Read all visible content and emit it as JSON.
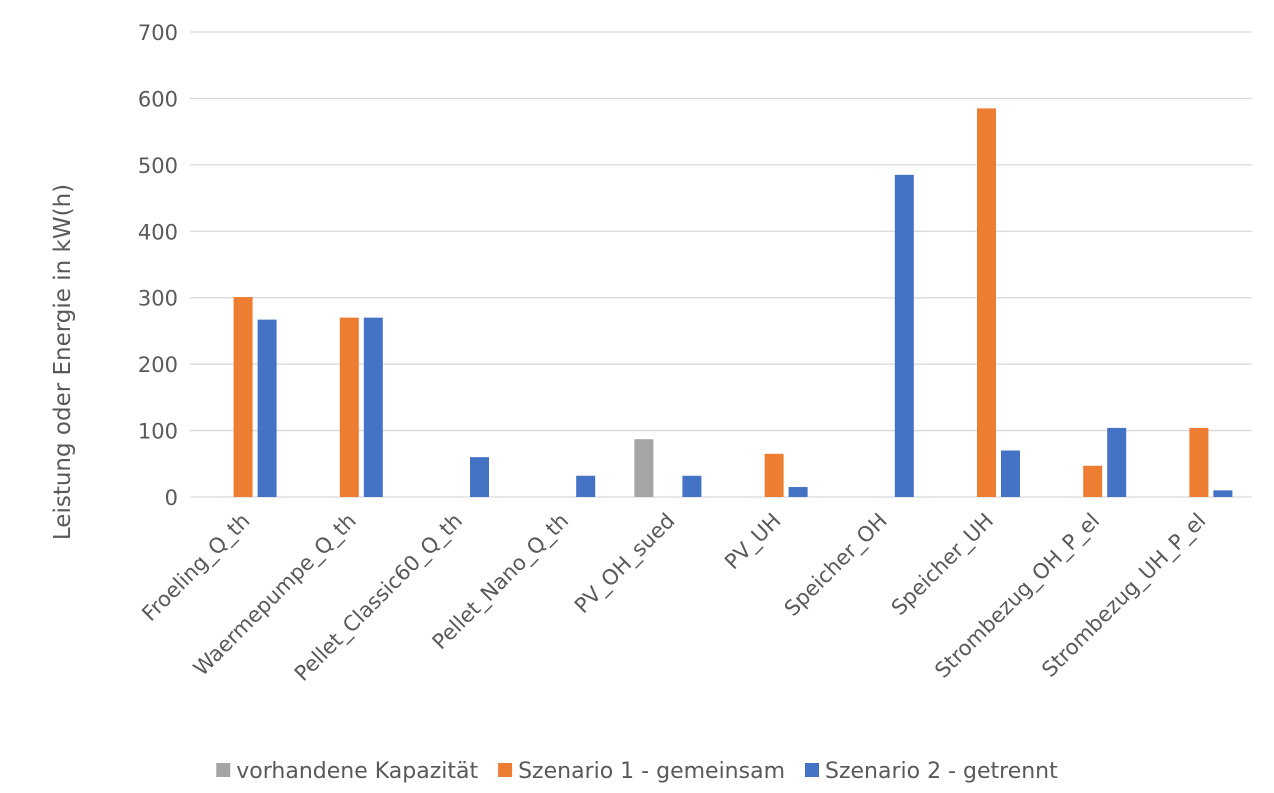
{
  "chart_data": {
    "type": "bar",
    "title": "",
    "xlabel": "",
    "ylabel": "Leistung oder Energie in kW(h)",
    "ylim": [
      0,
      700
    ],
    "yticks": [
      0,
      100,
      200,
      300,
      400,
      500,
      600,
      700
    ],
    "grid": true,
    "legend_position": "bottom",
    "categories": [
      "Froeling_Q_th",
      "Waermepumpe_Q_th",
      "Pellet_Classic60_Q_th",
      "Pellet_Nano_Q_th",
      "PV_OH_sued",
      "PV_UH",
      "Speicher_OH",
      "Speicher_UH",
      "Strombezug_OH_P_el",
      "Strombezug_UH_P_el"
    ],
    "series": [
      {
        "name": "vorhandene Kapazität",
        "color": "#a5a5a5",
        "values": [
          null,
          null,
          null,
          null,
          87,
          null,
          null,
          null,
          null,
          null
        ]
      },
      {
        "name": "Szenario 1 - gemeinsam",
        "color": "#ed7d31",
        "values": [
          301,
          270,
          null,
          null,
          null,
          65,
          null,
          585,
          47,
          104
        ]
      },
      {
        "name": "Szenario 2 - getrennt",
        "color": "#4472c4",
        "values": [
          267,
          270,
          60,
          32,
          32,
          15,
          485,
          70,
          104,
          10
        ]
      }
    ]
  }
}
